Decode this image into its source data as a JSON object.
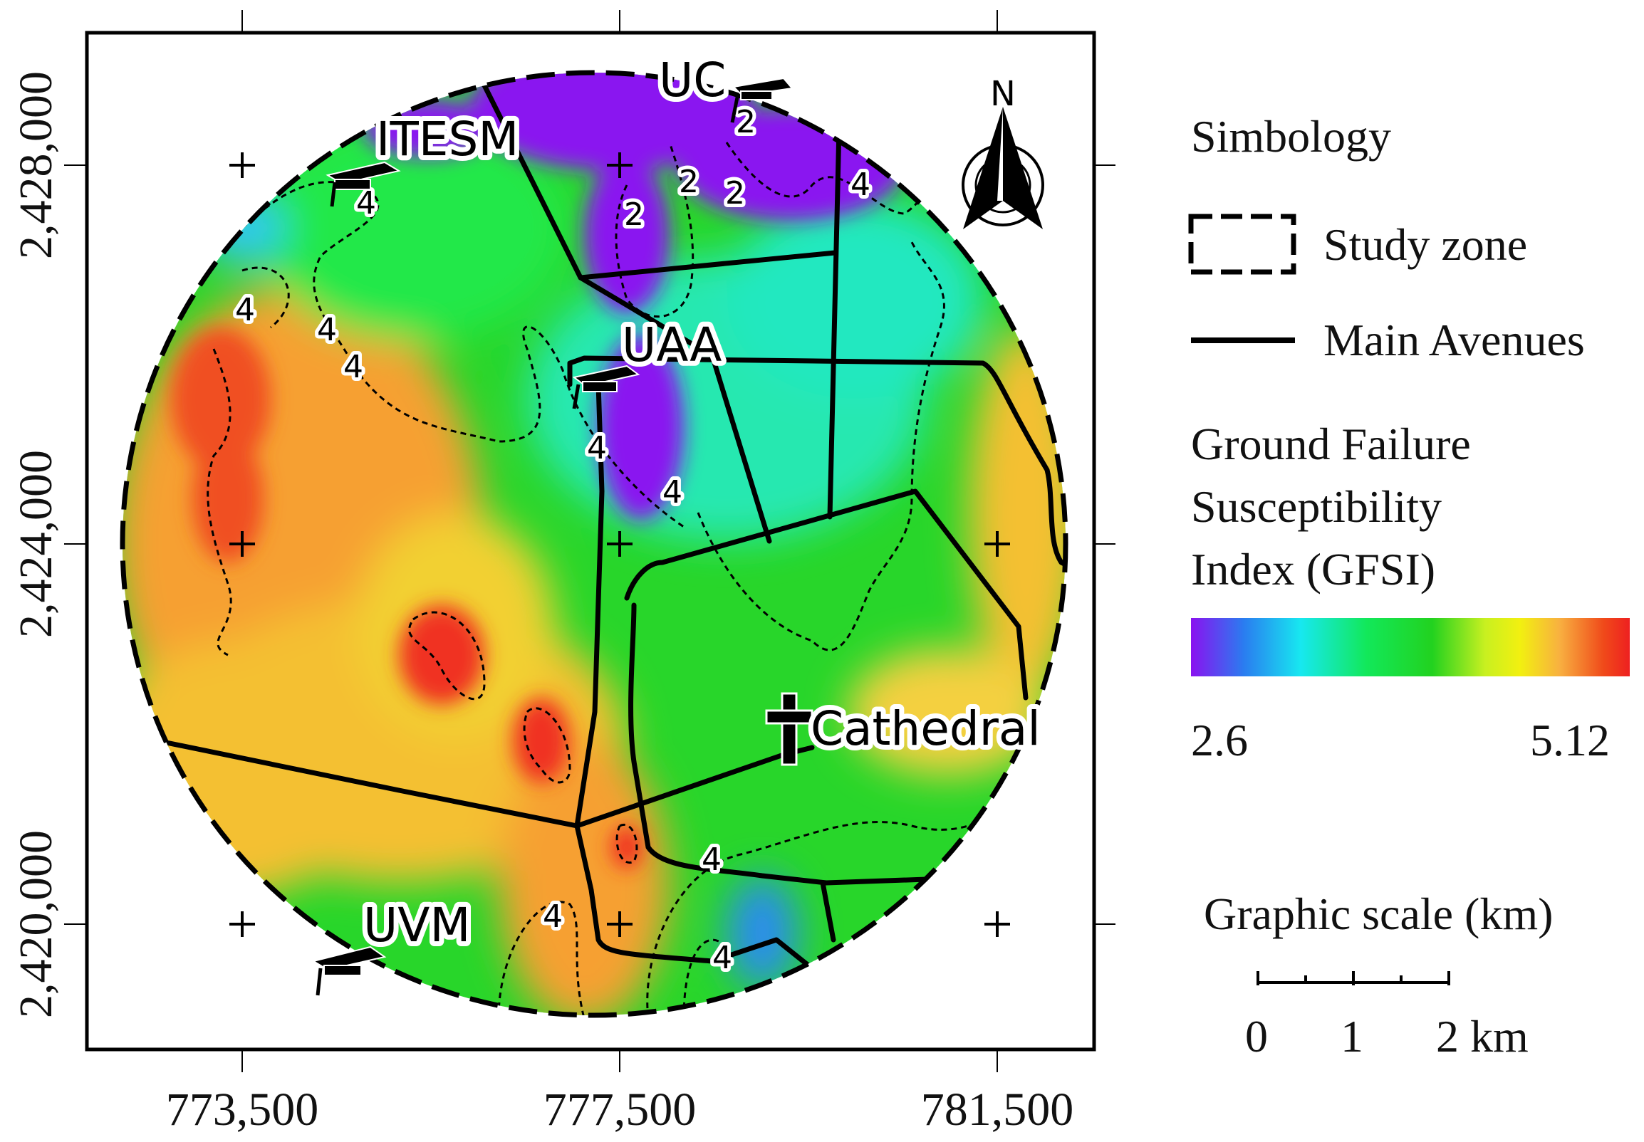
{
  "map": {
    "x_ticks": [
      "773,500",
      "777,500",
      "781,500"
    ],
    "y_ticks": [
      "2,428,000",
      "2,424,000",
      "2,420,000"
    ],
    "north_label": "N",
    "places": {
      "uc": "UC",
      "itesm": "ITESM",
      "uaa": "UAA",
      "cathedral": "Cathedral",
      "uvm": "UVM"
    },
    "contour_labels": {
      "two": "2",
      "four": "4"
    }
  },
  "legend": {
    "title": "Simbology",
    "study_zone": "Study zone",
    "main_avenues": "Main Avenues",
    "gfsi_line1": "Ground Failure",
    "gfsi_line2": "Susceptibility",
    "gfsi_line3": "Index (GFSI)",
    "gfsi_min": "2.6",
    "gfsi_max": "5.12",
    "colors": [
      "#8a12f0",
      "#2a7cf0",
      "#17e8f0",
      "#12e85a",
      "#22d21f",
      "#c8f020",
      "#f2f010",
      "#f8b040",
      "#f04a1a",
      "#ee2020"
    ]
  },
  "scale": {
    "title": "Graphic scale (km)",
    "labels": [
      "0",
      "1",
      "2 km"
    ]
  }
}
